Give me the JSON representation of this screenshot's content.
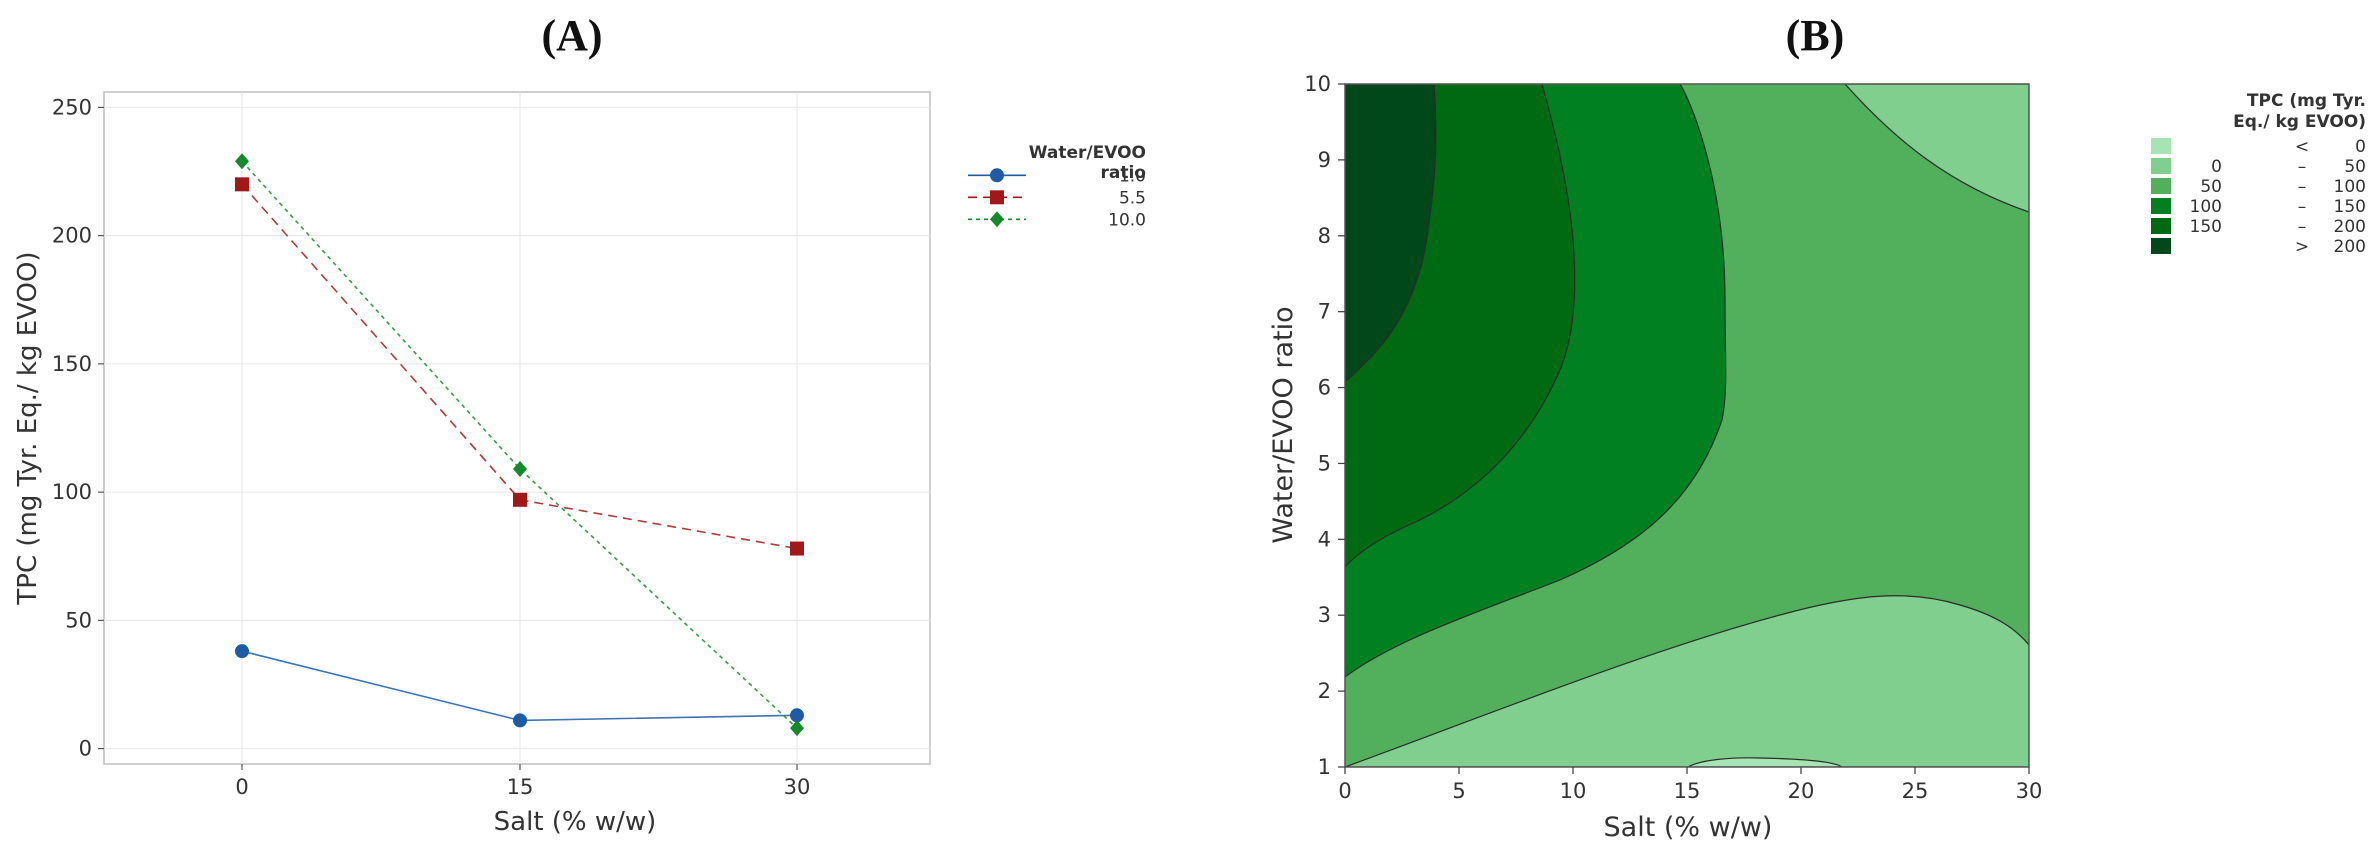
{
  "panel_a_label": "(A)",
  "panel_b_label": "(B)",
  "chart_data": [
    {
      "type": "line",
      "xlabel": "Salt (% w/w)",
      "ylabel": "TPC (mg Tyr. Eq./ kg EVOO)",
      "x": [
        0,
        15,
        30
      ],
      "x_ticks": [
        "0",
        "15",
        "30"
      ],
      "y_ticks": [
        0,
        50,
        100,
        150,
        200,
        250
      ],
      "ylim": [
        -6,
        256
      ],
      "grid": true,
      "legend": {
        "title_line1": "Water/EVOO",
        "title_line2": "ratio",
        "placement": "right"
      },
      "series": [
        {
          "name": "1.0",
          "values": [
            38,
            11,
            13
          ],
          "color": "#1f5aa6",
          "marker": "circle",
          "line_style": "solid"
        },
        {
          "name": "5.5",
          "values": [
            220,
            97,
            78
          ],
          "color": "#a01818",
          "marker": "square",
          "line_style": "dashed"
        },
        {
          "name": "10.0",
          "values": [
            229,
            109,
            8
          ],
          "color": "#158a2a",
          "marker": "diamond",
          "line_style": "dotted"
        }
      ]
    },
    {
      "type": "contour",
      "xlabel": "Salt (% w/w)",
      "ylabel": "Water/EVOO ratio",
      "x_ticks": [
        0,
        5,
        10,
        15,
        20,
        25,
        30
      ],
      "y_ticks": [
        1,
        2,
        3,
        4,
        5,
        6,
        7,
        8,
        9,
        10
      ],
      "xlim": [
        0,
        30
      ],
      "ylim": [
        1,
        10
      ],
      "legend": {
        "title_line1": "TPC (mg Tyr.",
        "title_line2": "Eq./ kg EVOO)",
        "placement": "right",
        "levels": [
          {
            "lo": "",
            "op": "<",
            "hi": "0",
            "color": "#a6e4b4"
          },
          {
            "lo": "0",
            "op": "–",
            "hi": "50",
            "color": "#80cf8e"
          },
          {
            "lo": "50",
            "op": "–",
            "hi": "100",
            "color": "#52b05c"
          },
          {
            "lo": "100",
            "op": "–",
            "hi": "150",
            "color": "#008020"
          },
          {
            "lo": "150",
            "op": "–",
            "hi": "200",
            "color": "#006a12"
          },
          {
            "lo": "",
            "op": ">",
            "hi": "200",
            "color": "#00481a"
          }
        ]
      }
    }
  ]
}
